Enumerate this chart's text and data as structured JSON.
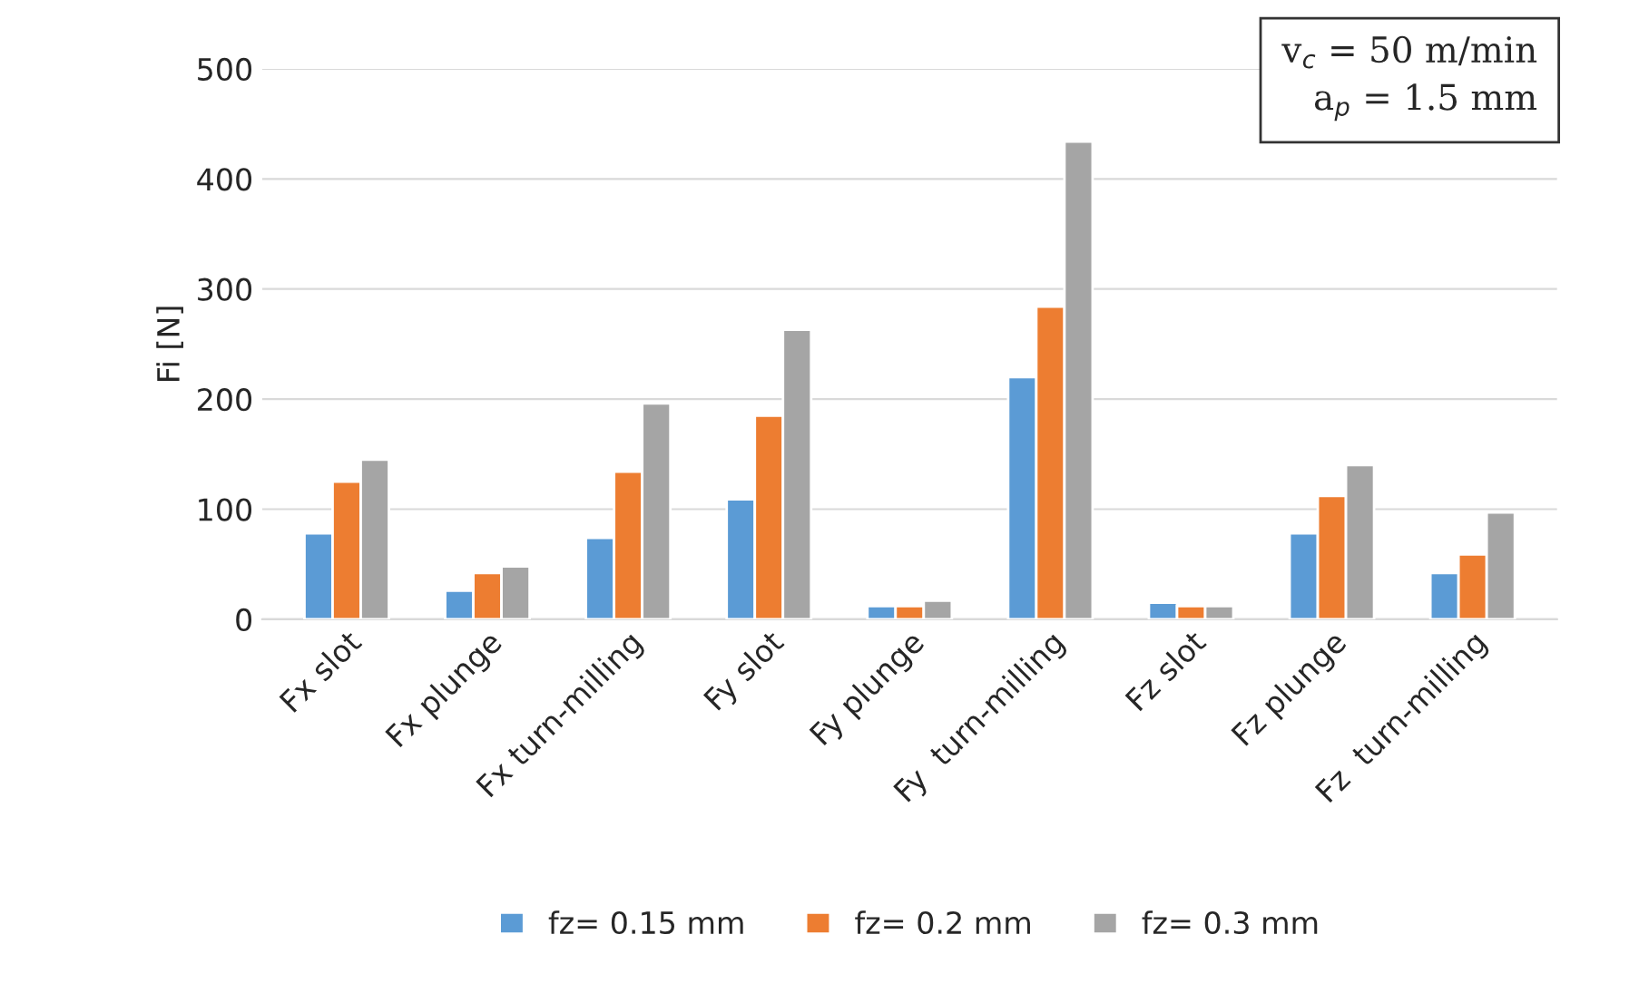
{
  "chart_data": {
    "type": "bar",
    "ylabel": "Fi [N]",
    "categories": [
      "Fx slot",
      "Fx plunge",
      "Fx turn-milling",
      "Fy slot",
      "Fy plunge",
      "Fy  turn-milling",
      "Fz slot",
      "Fz plunge",
      "Fz  turn-milling"
    ],
    "series": [
      {
        "name": "fz= 0.15 mm",
        "color": "#5b9bd5",
        "values": [
          78,
          26,
          74,
          109,
          12,
          220,
          15,
          78,
          42
        ]
      },
      {
        "name": "fz= 0.2 mm",
        "color": "#ed7d31",
        "values": [
          125,
          42,
          134,
          185,
          12,
          284,
          12,
          112,
          59
        ]
      },
      {
        "name": "fz= 0.3 mm",
        "color": "#a5a5a5",
        "values": [
          145,
          48,
          196,
          263,
          17,
          434,
          12,
          140,
          97
        ]
      }
    ],
    "ylim": [
      0,
      500
    ],
    "yticks": [
      0,
      100,
      200,
      300,
      400,
      500
    ],
    "grid": "y",
    "legend": "bottom",
    "annotations": [
      "v$_{c}$ = 50 m/min\na$_{p}$ = 1.5 mm"
    ]
  }
}
